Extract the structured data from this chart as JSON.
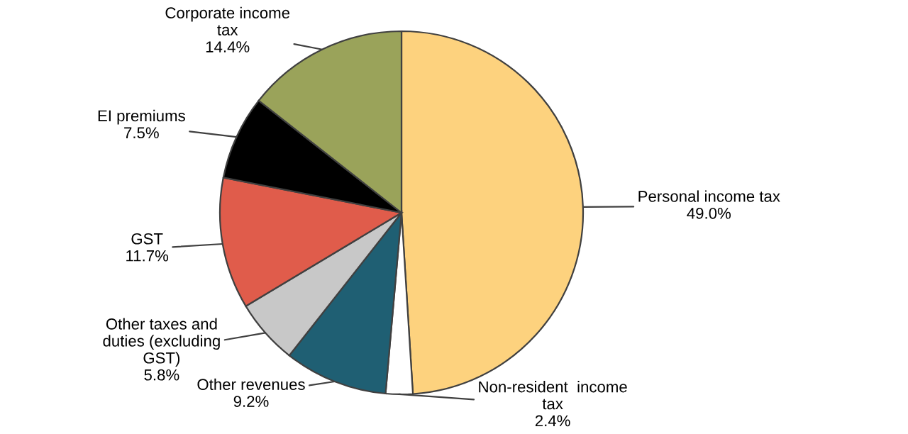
{
  "chart_data": {
    "type": "pie",
    "categories": [
      "Personal income tax",
      "Non-resident  income\ntax",
      "Other revenues",
      "Other taxes and\nduties (excluding\nGST)",
      "GST",
      "EI premiums",
      "Corporate income\ntax"
    ],
    "values": [
      49.0,
      2.4,
      9.2,
      5.8,
      11.7,
      7.5,
      14.4
    ],
    "colors": [
      "#fdd27e",
      "#ffffff",
      "#1f5f73",
      "#c8c8c8",
      "#e05c4b",
      "#000000",
      "#9aa35a"
    ],
    "value_labels": [
      "49.0%",
      "2.4%",
      "9.2%",
      "5.8%",
      "11.7%",
      "7.5%",
      "14.4%"
    ]
  }
}
